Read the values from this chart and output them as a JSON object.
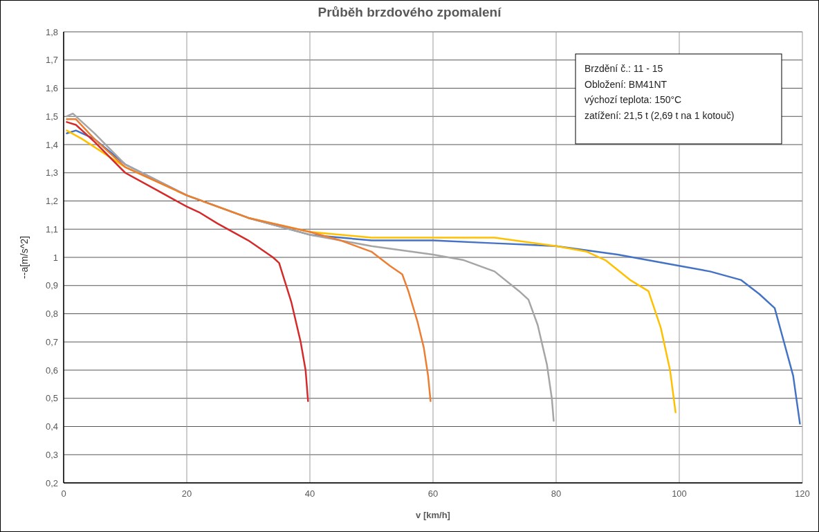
{
  "chart_data": {
    "type": "line",
    "title": "Průběh brzdového zpomalení",
    "xlabel": "v [km/h]",
    "ylabel": "--a[m/s^2]",
    "annotations": [
      "Brzdění č.: 11 - 15",
      "Obložení: BM41NT",
      "výchozí teplota: 150°C",
      "zatížení: 21,5 t (2,69 t na 1 kotouč)"
    ],
    "xlim": [
      0,
      120
    ],
    "xticks": [
      0,
      20,
      40,
      60,
      80,
      100,
      120
    ],
    "ylim": [
      0.2,
      1.8
    ],
    "yticks": [
      {
        "value": 0.2,
        "label": "0,2"
      },
      {
        "value": 0.3,
        "label": "0,3"
      },
      {
        "value": 0.4,
        "label": "0,4"
      },
      {
        "value": 0.5,
        "label": "0,5"
      },
      {
        "value": 0.6,
        "label": "0,6"
      },
      {
        "value": 0.7,
        "label": "0,7"
      },
      {
        "value": 0.8,
        "label": "0,8"
      },
      {
        "value": 0.9,
        "label": "0,9"
      },
      1,
      {
        "value": 1.1,
        "label": "1,1"
      },
      {
        "value": 1.2,
        "label": "1,2"
      },
      {
        "value": 1.3,
        "label": "1,3"
      },
      {
        "value": 1.4,
        "label": "1,4"
      },
      {
        "value": 1.5,
        "label": "1,5"
      },
      {
        "value": 1.6,
        "label": "1,6"
      },
      {
        "value": 1.7,
        "label": "1,7"
      },
      {
        "value": 1.8,
        "label": "1,8"
      }
    ],
    "grid": true,
    "marker": "none",
    "line_style": "solid",
    "series": [
      {
        "color": "#4472c4",
        "x": [
          0.5,
          2,
          5,
          10,
          20,
          30,
          40,
          50,
          60,
          70,
          80,
          90,
          100,
          105,
          110,
          113,
          115.5,
          117,
          118.5,
          119.6
        ],
        "values": [
          1.44,
          1.45,
          1.42,
          1.33,
          1.22,
          1.14,
          1.08,
          1.06,
          1.06,
          1.05,
          1.04,
          1.01,
          0.97,
          0.95,
          0.92,
          0.87,
          0.82,
          0.7,
          0.58,
          0.41
        ]
      },
      {
        "color": "#ffc000",
        "x": [
          0.5,
          3,
          10,
          20,
          30,
          40,
          50,
          60,
          70,
          80,
          85,
          88,
          92,
          95,
          97,
          98.5,
          99.4
        ],
        "values": [
          1.45,
          1.42,
          1.32,
          1.22,
          1.14,
          1.09,
          1.07,
          1.07,
          1.07,
          1.04,
          1.02,
          0.99,
          0.92,
          0.88,
          0.75,
          0.6,
          0.45
        ]
      },
      {
        "color": "#a5a5a5",
        "x": [
          0.5,
          1.5,
          5,
          10,
          20,
          30,
          40,
          50,
          60,
          65,
          70,
          74,
          75.5,
          77,
          78.5,
          79.3,
          79.6
        ],
        "values": [
          1.5,
          1.51,
          1.44,
          1.33,
          1.22,
          1.14,
          1.08,
          1.04,
          1.01,
          0.99,
          0.95,
          0.88,
          0.85,
          0.76,
          0.62,
          0.5,
          0.42
        ]
      },
      {
        "color": "#ed7d31",
        "x": [
          0.5,
          2,
          5,
          10,
          20,
          30,
          40,
          45,
          50,
          53,
          55,
          56,
          57.5,
          58.5,
          59.2,
          59.6
        ],
        "values": [
          1.49,
          1.49,
          1.42,
          1.32,
          1.22,
          1.14,
          1.09,
          1.06,
          1.02,
          0.97,
          0.94,
          0.88,
          0.77,
          0.68,
          0.58,
          0.49
        ]
      },
      {
        "color": "#d42a2a",
        "x": [
          0.5,
          2,
          5,
          10,
          15,
          20,
          22,
          25,
          30,
          34,
          35,
          37,
          38.5,
          39.3,
          39.7
        ],
        "values": [
          1.48,
          1.47,
          1.41,
          1.3,
          1.24,
          1.18,
          1.16,
          1.12,
          1.06,
          1.0,
          0.98,
          0.84,
          0.7,
          0.6,
          0.49
        ]
      }
    ]
  }
}
